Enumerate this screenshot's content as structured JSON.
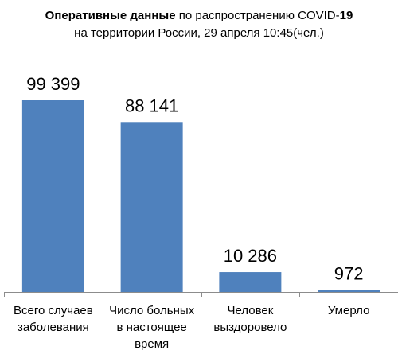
{
  "title": {
    "line1_bold": "Оперативные данные",
    "line1_regular": " по распространению COVID-",
    "line1_bold_end": "19",
    "line2": "на территории России, 29 апреля 10:45(чел.)"
  },
  "chart_data": {
    "type": "bar",
    "title": "Оперативные данные по распространению COVID-19 на территории России, 29 апреля 10:45(чел.)",
    "categories": [
      [
        "Всего случаев",
        "заболевания"
      ],
      [
        "Число больных",
        "в настоящее",
        "время"
      ],
      [
        "Человек",
        "выздоровело"
      ],
      [
        "Умерло"
      ]
    ],
    "values": [
      99399,
      88141,
      10286,
      972
    ],
    "value_labels": [
      "99 399",
      "88 141",
      "10 286",
      "972"
    ],
    "xlabel": "",
    "ylabel": "",
    "ylim": [
      0,
      99399
    ],
    "grid": false,
    "legend": "none",
    "bar_color": "#4f81bd",
    "axis_color": "#8c8c8c"
  }
}
